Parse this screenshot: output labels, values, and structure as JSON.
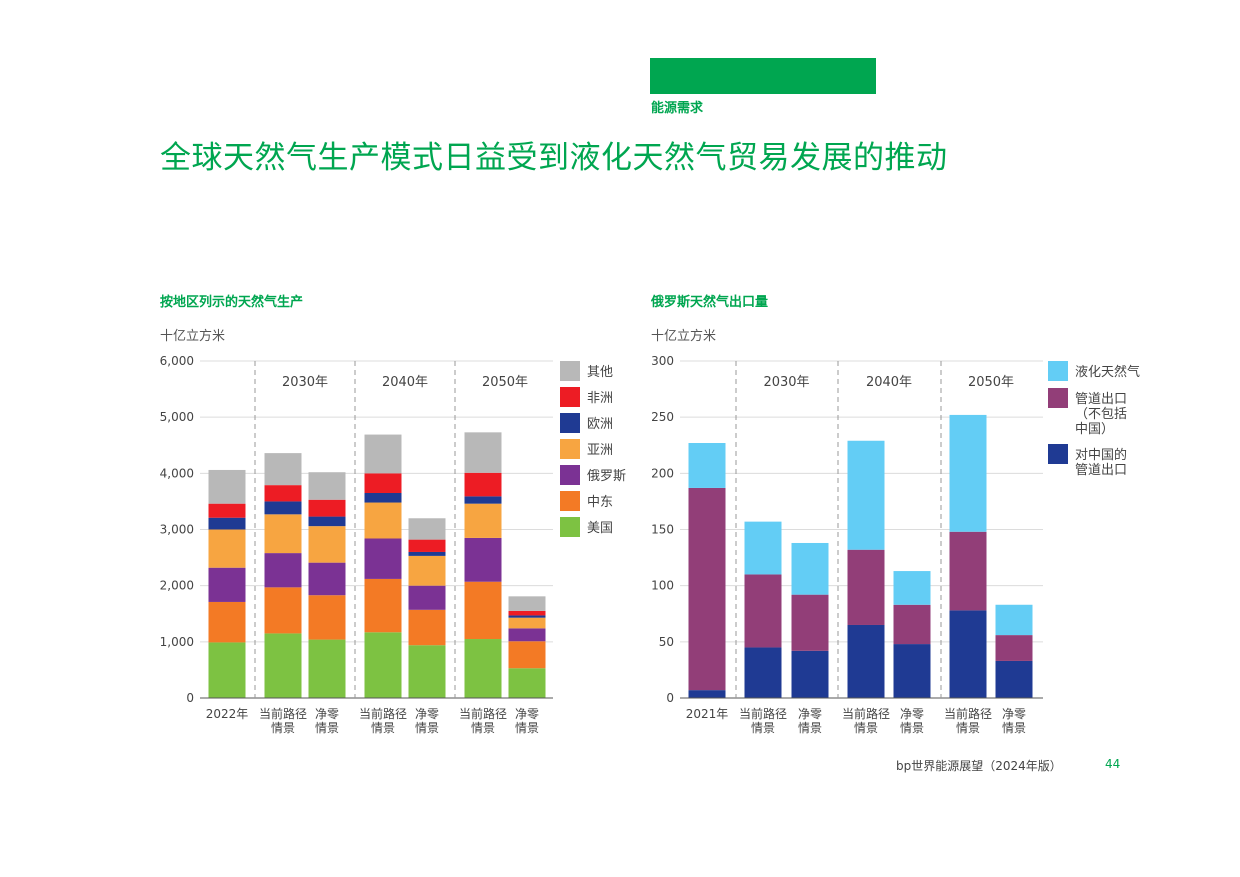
{
  "header": {
    "section": "能源需求",
    "title": "全球天然气生产模式日益受到液化天然气贸易发展的推动"
  },
  "footer": {
    "publication": "bp世界能源展望（2024年版）",
    "page": "44"
  },
  "chart_data": [
    {
      "type": "bar",
      "stacked": true,
      "title": "按地区列示的天然气生产",
      "ylabel": "十亿立方米",
      "ylim": [
        0,
        6000
      ],
      "yticks": [
        "0",
        "1,000",
        "2,000",
        "3,000",
        "4,000",
        "5,000",
        "6,000"
      ],
      "grid": true,
      "legend": "right",
      "groups": [
        "2030年",
        "2040年",
        "2050年"
      ],
      "categories": [
        [
          "2022年"
        ],
        [
          "当前路径",
          "情景"
        ],
        [
          "净零",
          "情景"
        ],
        [
          "当前路径",
          "情景"
        ],
        [
          "净零",
          "情景"
        ],
        [
          "当前路径",
          "情景"
        ],
        [
          "净零",
          "情景"
        ]
      ],
      "series": [
        {
          "name": "美国",
          "color": "#7dc242",
          "values": [
            990,
            1150,
            1040,
            1170,
            940,
            1050,
            530
          ]
        },
        {
          "name": "中东",
          "color": "#f37a25",
          "values": [
            720,
            820,
            790,
            950,
            630,
            1020,
            480
          ]
        },
        {
          "name": "俄罗斯",
          "color": "#7b3294",
          "values": [
            610,
            610,
            580,
            720,
            430,
            780,
            230
          ]
        },
        {
          "name": "亚洲",
          "color": "#f7a541",
          "values": [
            680,
            690,
            650,
            640,
            530,
            610,
            190
          ]
        },
        {
          "name": "欧洲",
          "color": "#1f3a93",
          "values": [
            210,
            230,
            170,
            170,
            70,
            130,
            40
          ]
        },
        {
          "name": "非洲",
          "color": "#ed1c24",
          "values": [
            250,
            290,
            300,
            350,
            220,
            420,
            80
          ]
        },
        {
          "name": "其他",
          "color": "#b8b8b8",
          "values": [
            600,
            570,
            490,
            690,
            380,
            720,
            260
          ]
        }
      ]
    },
    {
      "type": "bar",
      "stacked": true,
      "title": "俄罗斯天然气出口量",
      "ylabel": "十亿立方米",
      "ylim": [
        0,
        300
      ],
      "yticks": [
        "0",
        "50",
        "100",
        "150",
        "200",
        "250",
        "300"
      ],
      "grid": true,
      "legend": "right",
      "groups": [
        "2030年",
        "2040年",
        "2050年"
      ],
      "categories": [
        [
          "2021年"
        ],
        [
          "当前路径",
          "情景"
        ],
        [
          "净零",
          "情景"
        ],
        [
          "当前路径",
          "情景"
        ],
        [
          "净零",
          "情景"
        ],
        [
          "当前路径",
          "情景"
        ],
        [
          "净零",
          "情景"
        ]
      ],
      "series": [
        {
          "name": [
            "对中国的",
            "管道出口"
          ],
          "color": "#1f3a93",
          "values": [
            7,
            45,
            42,
            65,
            48,
            78,
            33
          ]
        },
        {
          "name": [
            "管道出口",
            "（不包括",
            "中国）"
          ],
          "color": "#923e78",
          "values": [
            180,
            65,
            50,
            67,
            35,
            70,
            23
          ]
        },
        {
          "name": [
            "液化天然气"
          ],
          "color": "#63cdf5",
          "values": [
            40,
            47,
            46,
            97,
            30,
            104,
            27
          ]
        }
      ]
    }
  ]
}
